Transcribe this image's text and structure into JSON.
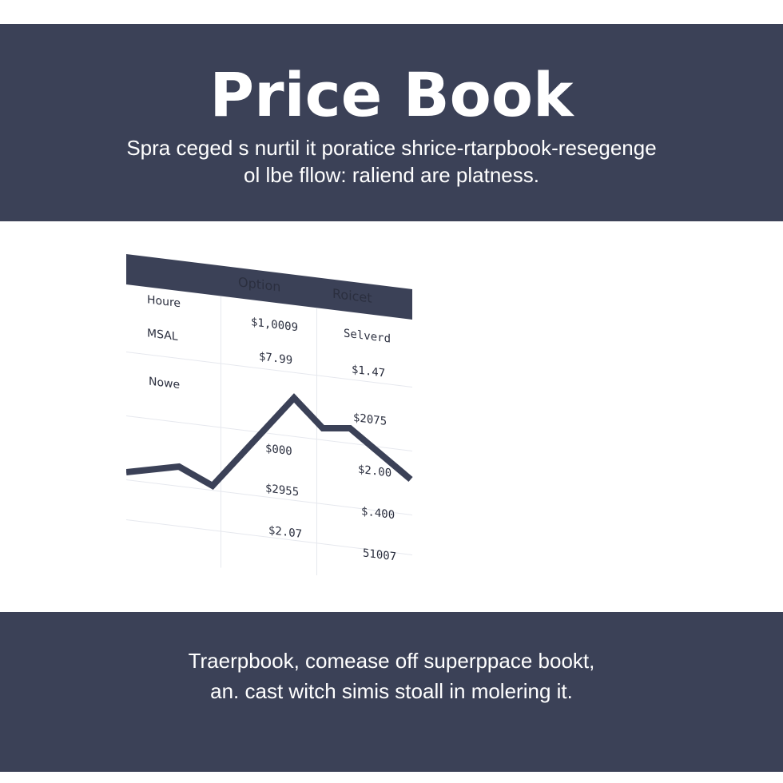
{
  "header": {
    "title": "Price Book",
    "subtitle_line1": "Spra ceged s nurtil it poratice shrice-rtarpbook-resegenge",
    "subtitle_line2": "ol lbe fllow: raliend are platness."
  },
  "table": {
    "columns": [
      "Option",
      "Roicet"
    ],
    "rows": [
      {
        "label": "Houre",
        "option": "$1,0009",
        "roicet": "Selverd"
      },
      {
        "label": "MSAL",
        "option": "$7.99",
        "roicet": "$1.47"
      },
      {
        "label": "Nowe",
        "option": "",
        "roicet": "$2075"
      },
      {
        "label": "",
        "option": "$000",
        "roicet": "$2.00"
      },
      {
        "label": "",
        "option": "$2955",
        "roicet": "$.400"
      },
      {
        "label": "",
        "option": "$2.07",
        "roicet": "51007"
      }
    ]
  },
  "colors": {
    "band": "#3b4157",
    "line": "#3b4157",
    "text_light": "#ffffff"
  },
  "footer": {
    "line1": "Traerpbook, comease off superppace bookt,",
    "line2": "an. cast witch simis stoall in molering it."
  }
}
